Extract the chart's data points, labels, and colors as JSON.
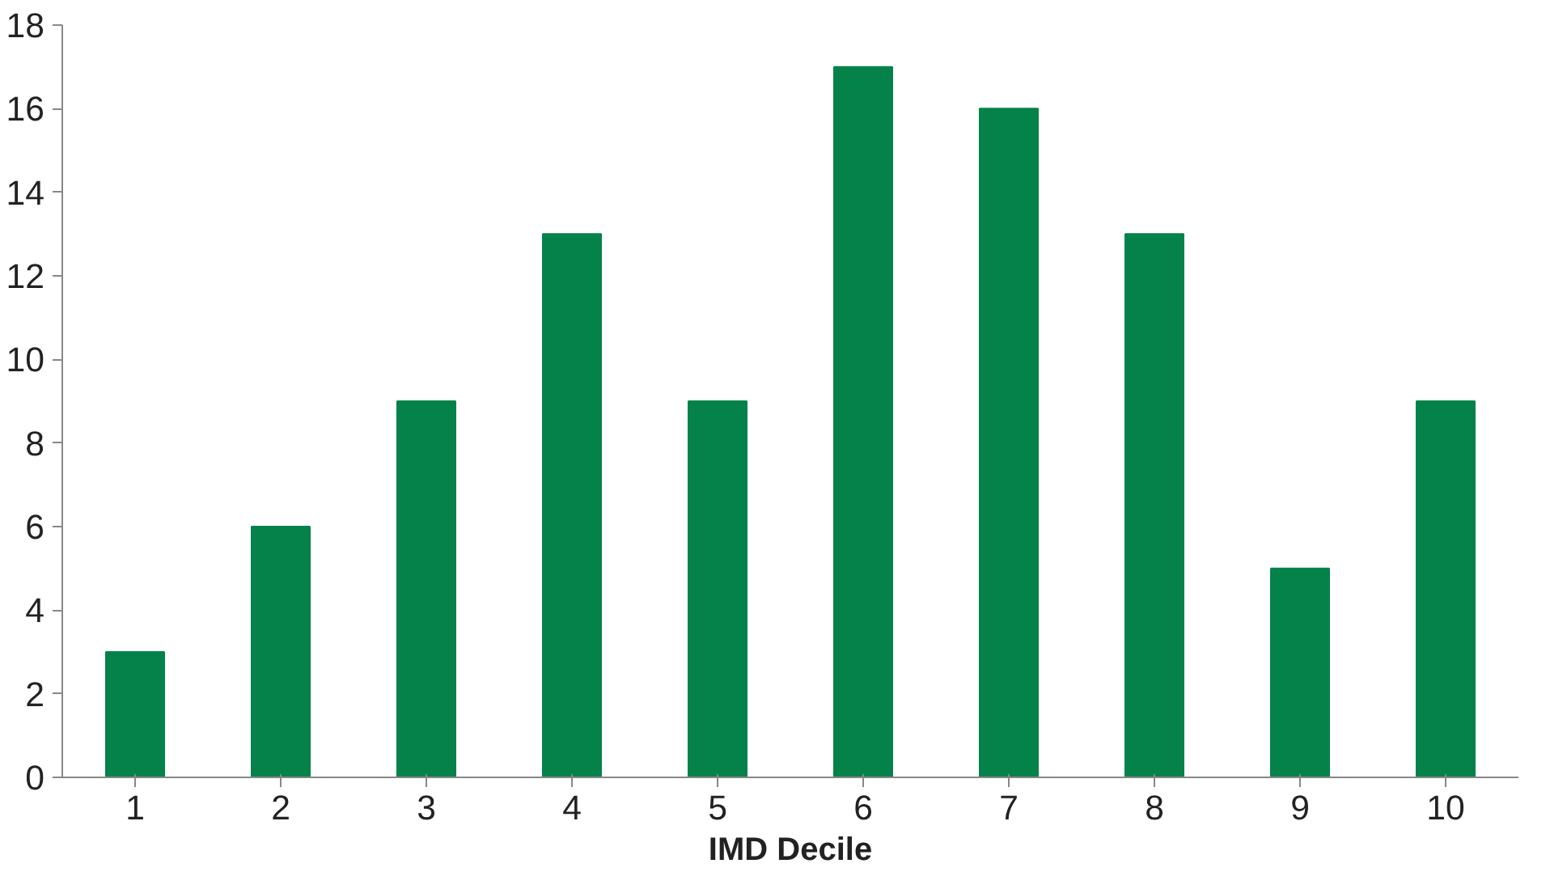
{
  "chart_data": {
    "type": "bar",
    "xlabel": "IMD Decile",
    "categories": [
      "1",
      "2",
      "3",
      "4",
      "5",
      "6",
      "7",
      "8",
      "9",
      "10"
    ],
    "values": [
      3,
      6,
      9,
      13,
      9,
      17,
      16,
      13,
      5,
      9
    ],
    "color": "#058249",
    "ylim": [
      0,
      18
    ],
    "yticks": [
      0,
      2,
      4,
      6,
      8,
      10,
      12,
      14,
      16,
      18
    ],
    "grid": false
  }
}
